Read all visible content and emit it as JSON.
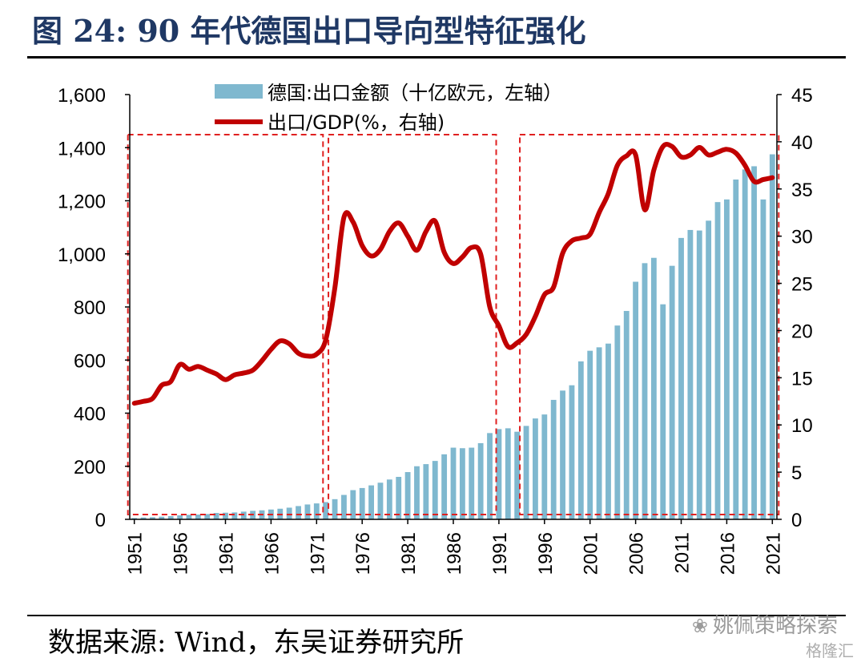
{
  "header": {
    "title": "图 24:  90 年代德国出口导向型特征强化"
  },
  "footer": {
    "source": "数据来源:  Wind，东吴证券研究所"
  },
  "watermark": {
    "text": "姚佩策略探索",
    "sub": "格隆汇",
    "icon": "wechat-icon"
  },
  "colors": {
    "bar": "#7fb8cf",
    "line": "#c00000",
    "box": "#e02020",
    "title": "#1f3864"
  },
  "chart_data": {
    "type": "bar+line",
    "x_tick_labels": [
      "1951",
      "1956",
      "1961",
      "1966",
      "1971",
      "1976",
      "1981",
      "1986",
      "1991",
      "1996",
      "2001",
      "2006",
      "2011",
      "2016",
      "2021"
    ],
    "y_left": {
      "ylim": [
        0,
        1600
      ],
      "ticks": [
        "0",
        "200",
        "400",
        "600",
        "800",
        "1,000",
        "1,200",
        "1,400",
        "1,600"
      ]
    },
    "y_right": {
      "ylim": [
        0,
        45
      ],
      "ticks": [
        "0",
        "5",
        "10",
        "15",
        "20",
        "25",
        "30",
        "35",
        "40",
        "45"
      ]
    },
    "legend": {
      "bar_label": "德国:出口金额（十亿欧元，左轴）",
      "line_label": "出口/GDP(%，右轴)",
      "placement": "top"
    },
    "highlight_periods": [
      [
        1951,
        1971
      ],
      [
        1973,
        1990
      ],
      [
        1994,
        2021
      ]
    ],
    "series": [
      {
        "name": "德国:出口金额（十亿欧元，左轴）",
        "type": "bar",
        "axis": "left",
        "x": [
          1951,
          1952,
          1953,
          1954,
          1955,
          1956,
          1957,
          1958,
          1959,
          1960,
          1961,
          1962,
          1963,
          1964,
          1965,
          1966,
          1967,
          1968,
          1969,
          1970,
          1971,
          1972,
          1973,
          1974,
          1975,
          1976,
          1977,
          1978,
          1979,
          1980,
          1981,
          1982,
          1983,
          1984,
          1985,
          1986,
          1987,
          1988,
          1989,
          1990,
          1991,
          1992,
          1993,
          1994,
          1995,
          1996,
          1997,
          1998,
          1999,
          2000,
          2001,
          2002,
          2003,
          2004,
          2005,
          2006,
          2007,
          2008,
          2009,
          2010,
          2011,
          2012,
          2013,
          2014,
          2015,
          2016,
          2017,
          2018,
          2019,
          2020,
          2021
        ],
        "values": [
          5,
          7,
          8,
          10,
          12,
          15,
          17,
          18,
          20,
          24,
          25,
          26,
          29,
          32,
          34,
          37,
          40,
          44,
          50,
          56,
          60,
          65,
          76,
          92,
          110,
          118,
          128,
          138,
          150,
          160,
          178,
          200,
          208,
          220,
          245,
          270,
          268,
          270,
          287,
          325,
          340,
          343,
          330,
          352,
          380,
          395,
          450,
          485,
          505,
          595,
          635,
          648,
          662,
          730,
          785,
          895,
          965,
          985,
          810,
          955,
          1060,
          1090,
          1088,
          1125,
          1195,
          1205,
          1280,
          1318,
          1330,
          1205,
          1375
        ]
      },
      {
        "name": "出口/GDP(%，右轴)",
        "type": "line",
        "axis": "right",
        "x": [
          1951,
          1952,
          1953,
          1954,
          1955,
          1956,
          1957,
          1958,
          1959,
          1960,
          1961,
          1962,
          1963,
          1964,
          1965,
          1966,
          1967,
          1968,
          1969,
          1970,
          1971,
          1972,
          1973,
          1974,
          1975,
          1976,
          1977,
          1978,
          1979,
          1980,
          1981,
          1982,
          1983,
          1984,
          1985,
          1986,
          1987,
          1988,
          1989,
          1990,
          1991,
          1992,
          1993,
          1994,
          1995,
          1996,
          1997,
          1998,
          1999,
          2000,
          2001,
          2002,
          2003,
          2004,
          2005,
          2006,
          2007,
          2008,
          2009,
          2010,
          2011,
          2012,
          2013,
          2014,
          2015,
          2016,
          2017,
          2018,
          2019,
          2020,
          2021
        ],
        "values": [
          12.3,
          12.5,
          12.8,
          14.2,
          14.6,
          16.4,
          15.9,
          16.2,
          15.8,
          15.4,
          14.8,
          15.3,
          15.5,
          15.8,
          16.8,
          18.0,
          18.9,
          18.6,
          17.6,
          17.3,
          17.5,
          19.0,
          24.5,
          32.0,
          31.5,
          29.0,
          27.9,
          28.6,
          30.5,
          31.4,
          30.0,
          28.5,
          30.5,
          31.6,
          28.3,
          27.1,
          27.8,
          28.8,
          28.1,
          22.5,
          20.5,
          18.3,
          18.7,
          19.6,
          21.5,
          23.8,
          24.6,
          28.2,
          29.5,
          29.8,
          30.2,
          32.5,
          34.5,
          37.5,
          38.5,
          38.6,
          32.8,
          37.0,
          39.5,
          39.5,
          38.4,
          38.6,
          39.4,
          38.6,
          38.9,
          39.2,
          38.8,
          37.5,
          35.8,
          36.0,
          36.2
        ]
      }
    ]
  }
}
